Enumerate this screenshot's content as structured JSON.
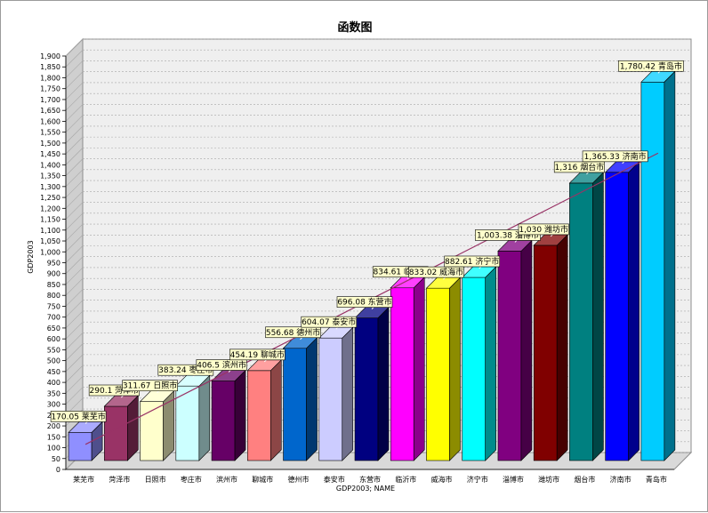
{
  "chart_data": {
    "type": "bar",
    "title": "函数图",
    "xlabel": "GDP2003; NAME",
    "ylabel": "GDP2003",
    "ylim": [
      0,
      1900
    ],
    "ytick_step": 50,
    "grid": true,
    "legend": "none",
    "trendline": true,
    "categories": [
      "莱芜市",
      "菏泽市",
      "日照市",
      "枣庄市",
      "滨州市",
      "聊城市",
      "德州市",
      "泰安市",
      "东营市",
      "临沂市",
      "威海市",
      "济宁市",
      "淄博市",
      "潍坊市",
      "烟台市",
      "济南市",
      "青岛市"
    ],
    "values": [
      170.05,
      290.1,
      311.67,
      383.24,
      406.5,
      454.19,
      556.68,
      604.07,
      696.08,
      834.61,
      833.02,
      882.61,
      1003.38,
      1030,
      1316,
      1365.33,
      1780.42
    ],
    "data_labels": [
      "170.05 莱芜市",
      "290.1 菏泽市",
      "311.67 日照市",
      "383.24 枣庄市",
      "406.5 滨州市",
      "454.19 聊城市",
      "556.68 德州市",
      "604.07 泰安市",
      "696.08 东营市",
      "834.61 临沂市",
      "833.02 威海市",
      "882.61 济宁市",
      "1,003.38 淄博市",
      "1,030 潍坊市",
      "1,316 烟台市",
      "1,365.33 济南市",
      "1,780.42 青岛市"
    ],
    "colors": [
      "#8f8fff",
      "#993366",
      "#ffffcc",
      "#ccffff",
      "#660066",
      "#ff8080",
      "#0066cc",
      "#ccccff",
      "#000080",
      "#ff00ff",
      "#ffff00",
      "#00ffff",
      "#800080",
      "#800000",
      "#008080",
      "#0000ff",
      "#00ccff"
    ],
    "trend_color": "#993366"
  }
}
